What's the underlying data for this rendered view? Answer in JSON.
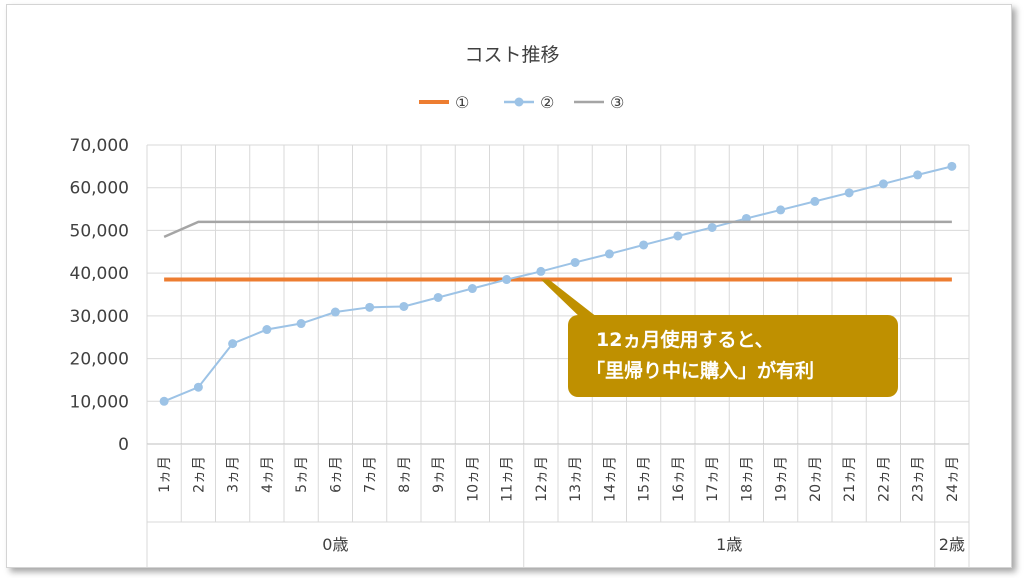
{
  "chart_data": {
    "type": "line",
    "title": "コスト推移",
    "categories": [
      "1ヵ月",
      "2ヵ月",
      "3ヵ月",
      "4ヵ月",
      "5ヵ月",
      "6ヵ月",
      "7ヵ月",
      "8ヵ月",
      "9ヵ月",
      "10ヵ月",
      "11ヵ月",
      "12ヵ月",
      "13ヵ月",
      "14ヵ月",
      "15ヵ月",
      "16ヵ月",
      "17ヵ月",
      "18ヵ月",
      "19ヵ月",
      "20ヵ月",
      "21ヵ月",
      "22ヵ月",
      "23ヵ月",
      "24ヵ月"
    ],
    "groups": [
      {
        "label": "0歳",
        "start": 0,
        "end": 10
      },
      {
        "label": "1歳",
        "start": 11,
        "end": 22
      },
      {
        "label": "2歳",
        "start": 23,
        "end": 23
      }
    ],
    "series": [
      {
        "name": "①",
        "color": "#ED7D31",
        "marker": false,
        "values": [
          38500,
          38500,
          38500,
          38500,
          38500,
          38500,
          38500,
          38500,
          38500,
          38500,
          38500,
          38500,
          38500,
          38500,
          38500,
          38500,
          38500,
          38500,
          38500,
          38500,
          38500,
          38500,
          38500,
          38500
        ]
      },
      {
        "name": "②",
        "color": "#9DC3E6",
        "marker": true,
        "values": [
          10000,
          13300,
          23500,
          26800,
          28200,
          30900,
          32000,
          32200,
          34300,
          36400,
          38500,
          40400,
          42500,
          44500,
          46600,
          48700,
          50700,
          52800,
          54800,
          56800,
          58800,
          60900,
          63000,
          65000
        ]
      },
      {
        "name": "③",
        "color": "#A5A5A5",
        "marker": false,
        "values": [
          48500,
          52000,
          52000,
          52000,
          52000,
          52000,
          52000,
          52000,
          52000,
          52000,
          52000,
          52000,
          52000,
          52000,
          52000,
          52000,
          52000,
          52000,
          52000,
          52000,
          52000,
          52000,
          52000,
          52000
        ]
      }
    ],
    "ylim": [
      0,
      70000
    ],
    "yticks": [
      0,
      10000,
      20000,
      30000,
      40000,
      50000,
      60000,
      70000
    ],
    "ytick_labels": [
      "0",
      "10,000",
      "20,000",
      "30,000",
      "40,000",
      "50,000",
      "60,000",
      "70,000"
    ],
    "grid": true,
    "legend": "top",
    "annotation": {
      "lines": [
        "12ヵ月使用すると、",
        "「里帰り中に購入」が有利"
      ],
      "point_index": 11,
      "point_value": 38500,
      "color": "#BF9000"
    }
  }
}
